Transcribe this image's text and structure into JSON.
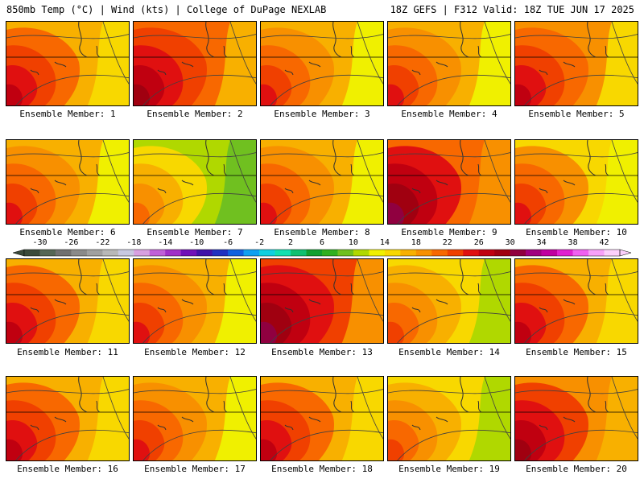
{
  "header": {
    "left": "850mb Temp (°C) | Wind (kts) | College of DuPage NEXLAB",
    "right": "18Z GEFS | F312 Valid: 18Z TUE JUN 17 2025"
  },
  "panel_label_prefix": "Ensemble Member: ",
  "members": [
    {
      "label": "Ensemble Member: 1",
      "level": 22
    },
    {
      "label": "Ensemble Member: 2",
      "level": 25
    },
    {
      "label": "Ensemble Member: 3",
      "level": 21
    },
    {
      "label": "Ensemble Member: 4",
      "level": 21
    },
    {
      "label": "Ensemble Member: 5",
      "level": 23
    },
    {
      "label": "Ensemble Member: 6",
      "level": 21
    },
    {
      "label": "Ensemble Member: 7",
      "level": 16
    },
    {
      "label": "Ensemble Member: 8",
      "level": 21
    },
    {
      "label": "Ensemble Member: 9",
      "level": 26
    },
    {
      "label": "Ensemble Member: 10",
      "level": 20
    },
    {
      "label": "Ensemble Member: 11",
      "level": 22
    },
    {
      "label": "Ensemble Member: 12",
      "level": 21
    },
    {
      "label": "Ensemble Member: 13",
      "level": 27
    },
    {
      "label": "Ensemble Member: 14",
      "level": 19
    },
    {
      "label": "Ensemble Member: 15",
      "level": 22
    },
    {
      "label": "Ensemble Member: 16",
      "level": 22
    },
    {
      "label": "Ensemble Member: 17",
      "level": 21
    },
    {
      "label": "Ensemble Member: 18",
      "level": 22
    },
    {
      "label": "Ensemble Member: 19",
      "level": 19
    },
    {
      "label": "Ensemble Member: 20",
      "level": 24
    }
  ],
  "colorbar": {
    "labels": [
      "-30",
      "-26",
      "-22",
      "-18",
      "-14",
      "-10",
      "-6",
      "-2",
      "2",
      "6",
      "10",
      "14",
      "18",
      "22",
      "26",
      "30",
      "34",
      "38",
      "42"
    ],
    "min": -32,
    "max": 44,
    "step": 2,
    "colors": [
      "#3a4a3a",
      "#556655",
      "#707070",
      "#8a8a8a",
      "#a0a0a0",
      "#b8b8b8",
      "#c8c8e0",
      "#d8a0e0",
      "#c060d8",
      "#a030c8",
      "#7010b8",
      "#4010a8",
      "#2030c0",
      "#1060e0",
      "#10a0f0",
      "#10d0e0",
      "#10e0b0",
      "#10c070",
      "#10a030",
      "#30b020",
      "#70c020",
      "#b0d800",
      "#f0f000",
      "#f8d800",
      "#f8b000",
      "#f89000",
      "#f86800",
      "#f04000",
      "#e01010",
      "#c00010",
      "#a00010",
      "#900040",
      "#a00080",
      "#c000a0",
      "#e020d0",
      "#f060f0",
      "#f8a0f8",
      "#fcd0fc"
    ]
  },
  "colors": {
    "land_line": "#303030",
    "contour": "#404040"
  }
}
